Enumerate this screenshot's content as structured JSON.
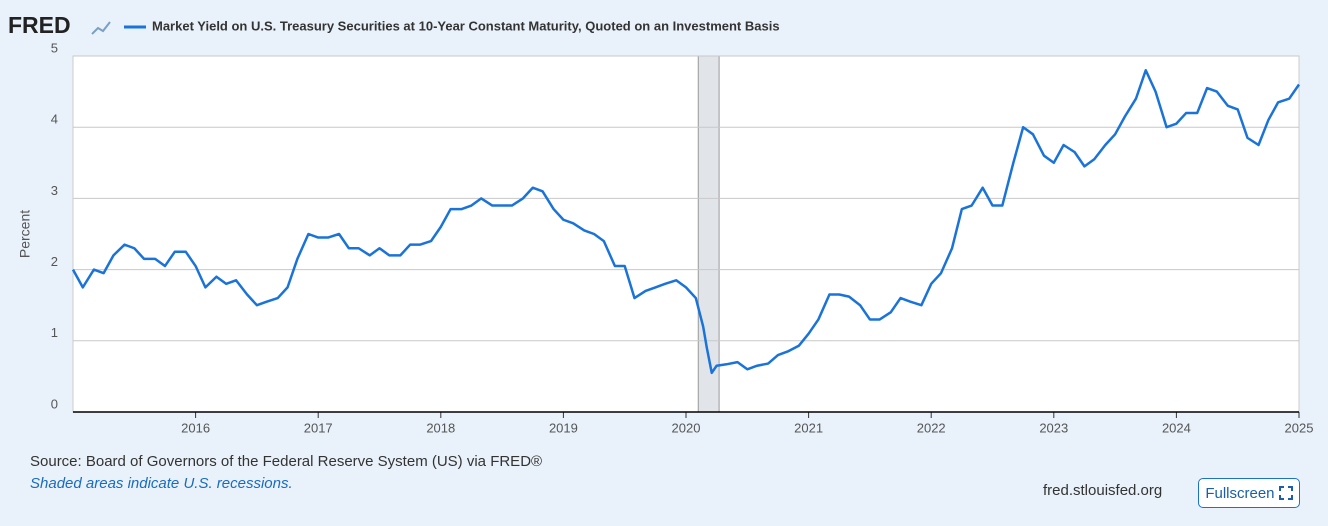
{
  "logo": "FRED",
  "chart_data": {
    "type": "line",
    "title": "Market Yield on U.S. Treasury Securities at 10-Year Constant Maturity, Quoted on an Investment Basis",
    "ylabel": "Percent",
    "x": [
      2015.0,
      2015.08,
      2015.17,
      2015.25,
      2015.33,
      2015.42,
      2015.5,
      2015.58,
      2015.67,
      2015.75,
      2015.83,
      2015.92,
      2016.0,
      2016.08,
      2016.17,
      2016.25,
      2016.33,
      2016.42,
      2016.5,
      2016.58,
      2016.67,
      2016.75,
      2016.83,
      2016.92,
      2017.0,
      2017.08,
      2017.17,
      2017.25,
      2017.33,
      2017.42,
      2017.5,
      2017.58,
      2017.67,
      2017.75,
      2017.83,
      2017.92,
      2018.0,
      2018.08,
      2018.17,
      2018.25,
      2018.33,
      2018.42,
      2018.5,
      2018.58,
      2018.67,
      2018.75,
      2018.83,
      2018.92,
      2019.0,
      2019.08,
      2019.17,
      2019.25,
      2019.33,
      2019.42,
      2019.5,
      2019.58,
      2019.67,
      2019.75,
      2019.83,
      2019.92,
      2020.0,
      2020.08,
      2020.14,
      2020.17,
      2020.21,
      2020.25,
      2020.33,
      2020.42,
      2020.5,
      2020.58,
      2020.67,
      2020.75,
      2020.83,
      2020.92,
      2021.0,
      2021.08,
      2021.17,
      2021.25,
      2021.33,
      2021.42,
      2021.5,
      2021.58,
      2021.67,
      2021.75,
      2021.83,
      2021.92,
      2022.0,
      2022.08,
      2022.17,
      2022.25,
      2022.33,
      2022.42,
      2022.5,
      2022.58,
      2022.67,
      2022.75,
      2022.83,
      2022.92,
      2023.0,
      2023.08,
      2023.17,
      2023.25,
      2023.33,
      2023.42,
      2023.5,
      2023.58,
      2023.67,
      2023.75,
      2023.83,
      2023.92,
      2024.0,
      2024.08,
      2024.17,
      2024.25,
      2024.33,
      2024.42,
      2024.5,
      2024.58,
      2024.67,
      2024.75,
      2024.83,
      2024.92,
      2025.0
    ],
    "series": [
      {
        "name": "Market Yield on U.S. Treasury Securities at 10-Year Constant Maturity, Quoted on an Investment Basis",
        "color": "#1a73d9",
        "values": [
          2.0,
          1.75,
          2.0,
          1.95,
          2.2,
          2.35,
          2.3,
          2.15,
          2.15,
          2.05,
          2.25,
          2.25,
          2.05,
          1.75,
          1.9,
          1.8,
          1.85,
          1.65,
          1.5,
          1.55,
          1.6,
          1.75,
          2.15,
          2.5,
          2.45,
          2.45,
          2.5,
          2.3,
          2.3,
          2.2,
          2.3,
          2.2,
          2.2,
          2.35,
          2.35,
          2.4,
          2.6,
          2.85,
          2.85,
          2.9,
          3.0,
          2.9,
          2.9,
          2.9,
          3.0,
          3.15,
          3.1,
          2.85,
          2.7,
          2.65,
          2.55,
          2.5,
          2.4,
          2.05,
          2.05,
          1.6,
          1.7,
          1.75,
          1.8,
          1.85,
          1.75,
          1.6,
          1.2,
          0.9,
          0.55,
          0.65,
          0.67,
          0.7,
          0.6,
          0.65,
          0.68,
          0.8,
          0.85,
          0.93,
          1.1,
          1.3,
          1.65,
          1.65,
          1.62,
          1.5,
          1.3,
          1.3,
          1.4,
          1.6,
          1.55,
          1.5,
          1.8,
          1.95,
          2.3,
          2.85,
          2.9,
          3.15,
          2.9,
          2.9,
          3.5,
          4.0,
          3.9,
          3.6,
          3.5,
          3.75,
          3.65,
          3.45,
          3.55,
          3.75,
          3.9,
          4.15,
          4.4,
          4.8,
          4.5,
          4.0,
          4.05,
          4.2,
          4.2,
          4.55,
          4.5,
          4.3,
          4.25,
          3.85,
          3.75,
          4.1,
          4.35,
          4.4,
          4.6
        ]
      }
    ],
    "recessions": [
      [
        2020.1,
        2020.27
      ]
    ],
    "xlim": [
      2015,
      2025
    ],
    "xticks": [
      2016,
      2017,
      2018,
      2019,
      2020,
      2021,
      2022,
      2023,
      2024,
      2025
    ],
    "ylim": [
      0,
      5
    ],
    "yticks": [
      0,
      1,
      2,
      3,
      4,
      5
    ],
    "grid": true
  },
  "source": "Source: Board of Governors of the Federal Reserve System (US) via FRED®",
  "note": "Shaded areas indicate U.S. recessions.",
  "url": "fred.stlouisfed.org",
  "button": "Fullscreen"
}
